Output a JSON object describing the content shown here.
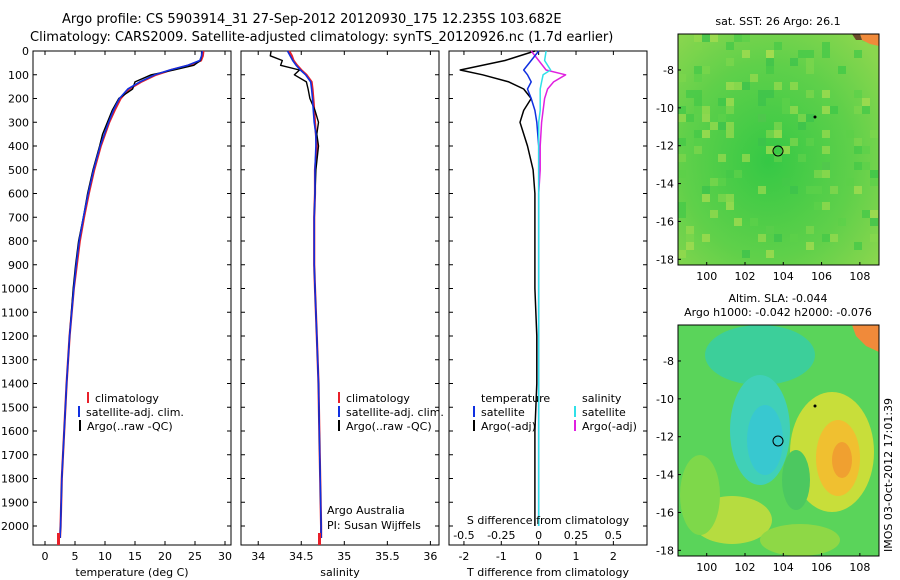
{
  "title_line1": "Argo profile: CS 5903914_31 27-Sep-2012 20120930_175 12.235S 103.682E",
  "title_line2": "Climatology: CARS2009. Satellite-adjusted climatology: synTS_20120926.nc (1.7d earlier)",
  "map1_title": "sat. SST: 26 Argo: 26.1",
  "map2_title1": "Altim. SLA: -0.044",
  "map2_title2": "Argo h1000: -0.042 h2000: -0.076",
  "side_label": "IMOS 03-Oct-2012 17:01:39",
  "colors": {
    "climatology": "#e8202a",
    "satellite": "#1030e0",
    "argo": "#000000",
    "sat_salinity": "#30e0e8",
    "argo_salinity": "#e020e0"
  },
  "chart_data": [
    {
      "type": "line",
      "xlabel": "temperature (deg C)",
      "ylabel": "",
      "xlim": [
        -2,
        31
      ],
      "ylim": [
        2080,
        0
      ],
      "xticks": [
        "0",
        "5",
        "10",
        "15",
        "20",
        "25",
        "30"
      ],
      "yticks": [
        "0",
        "100",
        "200",
        "300",
        "400",
        "500",
        "600",
        "700",
        "800",
        "900",
        "1000",
        "1100",
        "1200",
        "1300",
        "1400",
        "1500",
        "1600",
        "1700",
        "1800",
        "1900",
        "2000"
      ],
      "legend": [
        "climatology",
        "satellite-adj. clim.",
        "Argo(..raw -QC)"
      ],
      "depth": [
        0,
        20,
        40,
        60,
        80,
        100,
        130,
        160,
        200,
        250,
        300,
        350,
        400,
        500,
        600,
        700,
        800,
        900,
        1000,
        1200,
        1400,
        1600,
        1800,
        2000,
        2050
      ],
      "series": [
        {
          "name": "climatology",
          "values": [
            26.4,
            26.3,
            26.0,
            24.0,
            21.0,
            18.5,
            16.0,
            14.0,
            12.6,
            11.6,
            10.7,
            10.0,
            9.3,
            8.2,
            7.3,
            6.5,
            5.8,
            5.3,
            4.8,
            4.1,
            3.6,
            3.2,
            2.8,
            2.6,
            2.5
          ]
        },
        {
          "name": "satellite-adj. clim.",
          "values": [
            26.2,
            26.1,
            25.8,
            23.8,
            20.8,
            18.3,
            15.8,
            13.8,
            12.4,
            11.4,
            10.6,
            9.9,
            9.2,
            8.1,
            7.2,
            6.4,
            5.7,
            5.2,
            4.8,
            4.1,
            3.6,
            3.2,
            2.8,
            2.6,
            2.5
          ]
        },
        {
          "name": "Argo(..raw -QC)",
          "values": [
            26.1,
            26.1,
            25.9,
            24.8,
            21.5,
            17.7,
            15.0,
            14.6,
            12.3,
            11.2,
            10.4,
            9.6,
            9.1,
            8.0,
            7.1,
            6.4,
            5.6,
            5.1,
            4.7,
            4.1,
            3.6,
            3.2,
            2.8,
            2.6,
            2.5
          ]
        }
      ]
    },
    {
      "type": "line",
      "xlabel": "salinity",
      "xlim": [
        33.8,
        36.1
      ],
      "ylim": [
        2080,
        0
      ],
      "xticks": [
        "34",
        "34.5",
        "35",
        "35.5",
        "36"
      ],
      "legend": [
        "climatology",
        "satellite-adj. clim.",
        "Argo(..raw -QC)"
      ],
      "annotation": [
        "Argo Australia",
        "PI: Susan Wijffels"
      ],
      "depth": [
        0,
        20,
        40,
        60,
        80,
        100,
        130,
        160,
        200,
        250,
        300,
        350,
        400,
        500,
        600,
        700,
        800,
        900,
        1000,
        1200,
        1400,
        1600,
        1800,
        2000,
        2050
      ],
      "series": [
        {
          "name": "climatology",
          "values": [
            34.36,
            34.39,
            34.41,
            34.45,
            34.5,
            34.56,
            34.62,
            34.63,
            34.64,
            34.65,
            34.66,
            34.67,
            34.68,
            34.66,
            34.66,
            34.65,
            34.65,
            34.65,
            34.66,
            34.68,
            34.7,
            34.71,
            34.72,
            34.73,
            34.73
          ]
        },
        {
          "name": "satellite-adj. clim.",
          "values": [
            34.34,
            34.37,
            34.4,
            34.44,
            34.49,
            34.55,
            34.61,
            34.62,
            34.63,
            34.64,
            34.65,
            34.67,
            34.67,
            34.66,
            34.66,
            34.65,
            34.65,
            34.65,
            34.66,
            34.68,
            34.7,
            34.71,
            34.72,
            34.73,
            34.73
          ]
        },
        {
          "name": "Argo(..raw -QC)",
          "values": [
            34.15,
            34.14,
            34.28,
            34.26,
            34.48,
            34.42,
            34.56,
            34.58,
            34.6,
            34.66,
            34.7,
            34.68,
            34.7,
            34.67,
            34.66,
            34.65,
            34.65,
            34.65,
            34.66,
            34.68,
            34.7,
            34.71,
            34.72,
            34.73,
            34.73
          ]
        }
      ]
    },
    {
      "type": "line",
      "xlabel": "T difference from climatology",
      "xlabel_top": "S difference from climatology",
      "xlim": [
        -2.4,
        2.9
      ],
      "ylim": [
        2080,
        0
      ],
      "xticks": [
        "-2",
        "-1",
        "0",
        "1",
        "2"
      ],
      "xticks_top": [
        "-0.5",
        "-0.25",
        "0",
        "0.25",
        "0.5"
      ],
      "legend_temperature": [
        "temperature",
        "satellite",
        "Argo(-adj)"
      ],
      "legend_salinity": [
        "salinity",
        "satellite",
        "Argo(-adj)"
      ],
      "depth": [
        0,
        40,
        80,
        100,
        130,
        160,
        200,
        250,
        300,
        400,
        500,
        600,
        800,
        1000,
        1200,
        1400,
        1600,
        1800,
        2000
      ],
      "series": [
        {
          "name": "temperature satellite",
          "values": [
            0.0,
            -0.2,
            -0.4,
            -0.3,
            -0.2,
            -0.3,
            -0.2,
            -0.1,
            -0.05,
            0.0,
            0.0,
            0.0,
            0.0,
            0.0,
            0.0,
            0.0,
            0.0,
            0.0,
            0.0
          ]
        },
        {
          "name": "temperature Argo(-adj)",
          "values": [
            -0.1,
            -0.9,
            -2.1,
            -1.5,
            -0.8,
            -0.4,
            -0.2,
            -0.4,
            -0.5,
            -0.3,
            -0.15,
            -0.1,
            -0.1,
            -0.1,
            -0.05,
            -0.05,
            -0.1,
            -0.1,
            -0.1
          ]
        },
        {
          "name": "salinity satellite",
          "values": [
            0.05,
            0.04,
            0.08,
            0.03,
            0.02,
            0.01,
            0.01,
            0.01,
            0.0,
            0.0,
            0.0,
            0.0,
            0.0,
            0.0,
            0.0,
            0.0,
            0.0,
            0.0,
            0.0
          ]
        },
        {
          "name": "salinity Argo(-adj)",
          "values": [
            -0.05,
            0.0,
            0.05,
            0.18,
            0.1,
            0.06,
            0.04,
            0.03,
            0.02,
            0.01,
            0.01,
            0.0,
            0.0,
            0.0,
            0.0,
            0.0,
            0.0,
            0.0,
            0.0
          ]
        }
      ]
    },
    {
      "type": "heatmap",
      "title": "sat. SST: 26 Argo: 26.1",
      "xticks": [
        "100",
        "102",
        "104",
        "106",
        "108"
      ],
      "yticks": [
        "-8",
        "-10",
        "-12",
        "-14",
        "-16",
        "-18"
      ],
      "xlim": [
        98.5,
        109
      ],
      "ylim": [
        -18.3,
        -6.1
      ],
      "marker": {
        "lon": 103.7,
        "lat": -12.2
      },
      "land_color": "#f08a3a",
      "water_color": "#3cc84a"
    },
    {
      "type": "heatmap",
      "title": "Altim. SLA: -0.044",
      "xticks": [
        "100",
        "102",
        "104",
        "106",
        "108"
      ],
      "yticks": [
        "-8",
        "-10",
        "-12",
        "-14",
        "-16",
        "-18"
      ],
      "xlim": [
        98.5,
        109
      ],
      "ylim": [
        -18.3,
        -6.1
      ],
      "marker": {
        "lon": 103.7,
        "lat": -12.2
      }
    }
  ]
}
